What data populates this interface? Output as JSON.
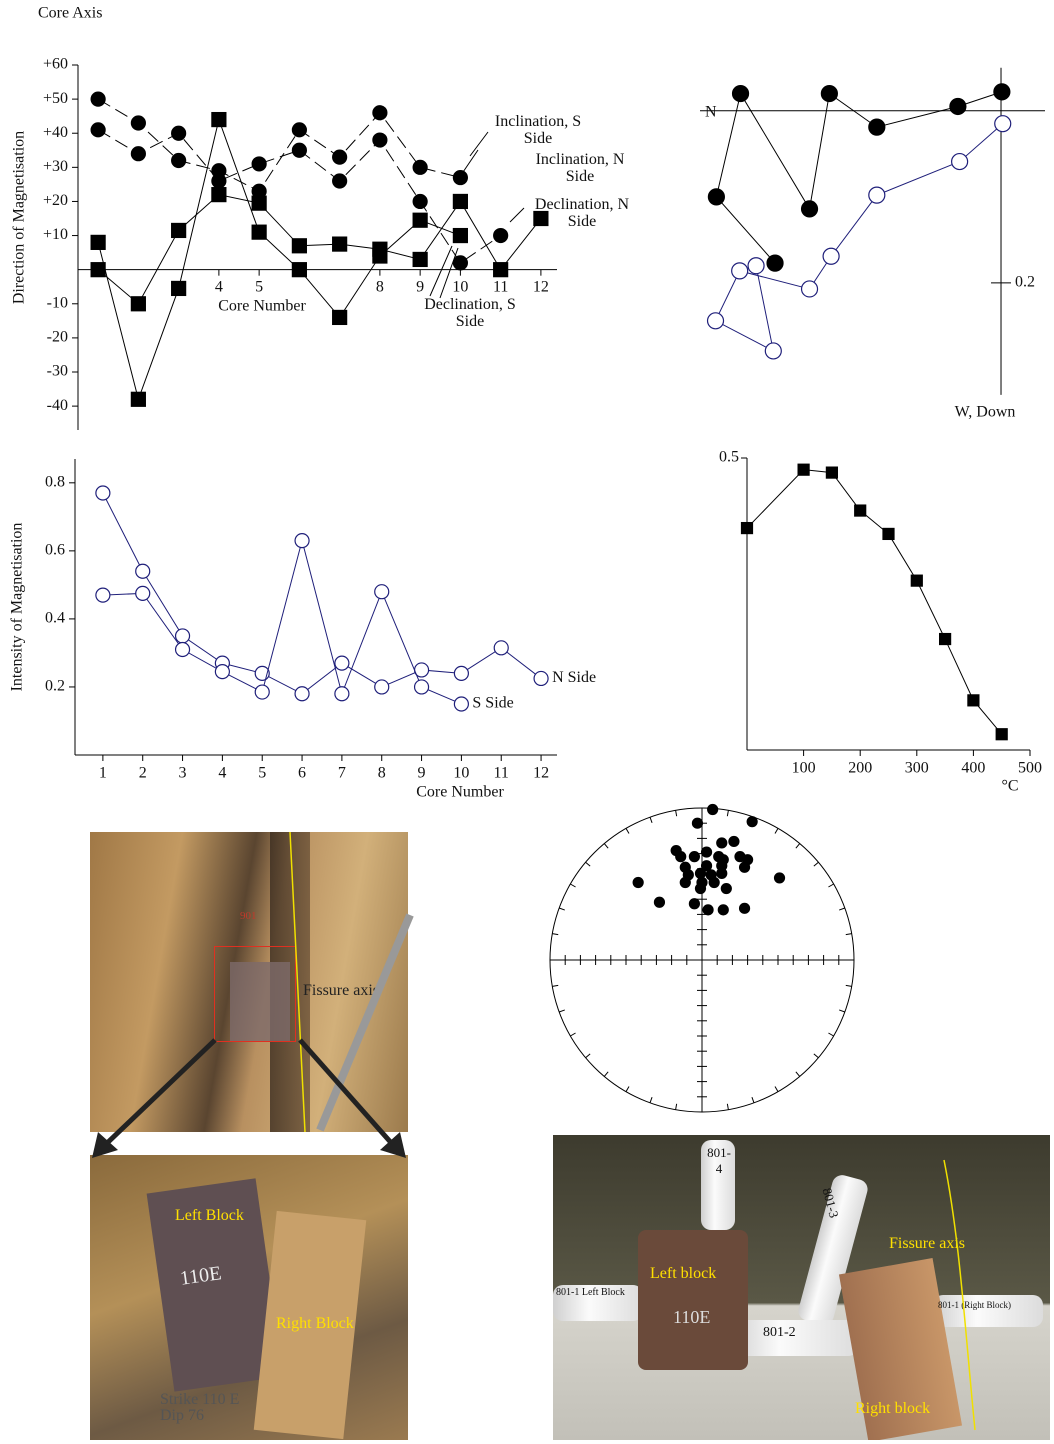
{
  "chart_data": [
    {
      "type": "line",
      "y_axis_title": "Core Axis",
      "ylabel": "Direction of Magnetisation",
      "xlabel": "Core Number",
      "x": [
        1,
        2,
        3,
        4,
        5,
        6,
        7,
        8,
        9,
        10,
        11,
        12
      ],
      "xlim": [
        0.5,
        12.4
      ],
      "xticks": [
        4,
        5,
        8,
        9,
        10,
        11,
        12
      ],
      "ylim": [
        -47,
        60
      ],
      "yticks": [
        {
          "value": 60,
          "label": "+60"
        },
        {
          "value": 50,
          "label": "+50"
        },
        {
          "value": 40,
          "label": "+40"
        },
        {
          "value": 30,
          "label": "+30"
        },
        {
          "value": 20,
          "label": "+20"
        },
        {
          "value": 10,
          "label": "+10"
        },
        -10,
        -20,
        -30,
        -40
      ],
      "series": [
        {
          "name": "Inclination, S Side",
          "color": "#000000",
          "marker": "circle",
          "filled": true,
          "line_style": "dashed",
          "values": [
            50,
            43,
            32,
            29,
            23,
            41,
            33,
            46,
            30,
            27,
            null,
            null
          ]
        },
        {
          "name": "Inclination, N Side",
          "color": "#000000",
          "marker": "circle",
          "filled": true,
          "line_style": "dashed",
          "values": [
            41,
            34,
            40,
            26,
            31,
            35,
            26,
            38,
            20,
            2,
            10,
            null
          ]
        },
        {
          "name": "Declination, S Side",
          "color": "#000000",
          "marker": "square",
          "filled": true,
          "line_style": "solid",
          "values": [
            8,
            -38,
            -5.5,
            44,
            11,
            0,
            -14,
            4,
            14.5,
            10,
            null,
            null
          ]
        },
        {
          "name": "Declination, N Side",
          "color": "#000000",
          "marker": "square",
          "filled": true,
          "line_style": "solid",
          "values": [
            0,
            -10,
            11.5,
            22,
            19.5,
            7,
            7.5,
            6,
            3,
            20,
            0,
            15
          ]
        }
      ]
    },
    {
      "type": "line",
      "axis_label_x": "N",
      "axis_label_y": "W, Down",
      "xlim": [
        -0.349,
        0.051
      ],
      "ylim": [
        -0.336,
        0.059
      ],
      "yticks": [
        {
          "value": -0.2,
          "label": "0.2"
        }
      ],
      "series": [
        {
          "color": "#000000",
          "marker": "circle",
          "filled": true,
          "line_style": "solid",
          "x": [
            0.001,
            -0.05,
            -0.144,
            -0.199,
            -0.222,
            -0.302,
            -0.33,
            -0.262
          ],
          "values": [
            0.022,
            0.005,
            -0.019,
            0.02,
            -0.114,
            0.02,
            -0.1,
            -0.177
          ]
        },
        {
          "color": "#1f1f7a",
          "marker": "circle",
          "filled": false,
          "line_style": "solid",
          "x": [
            0.002,
            -0.048,
            -0.144,
            -0.197,
            -0.222,
            -0.303,
            -0.331,
            -0.264,
            -0.284
          ],
          "values": [
            -0.015,
            -0.059,
            -0.098,
            -0.169,
            -0.207,
            -0.186,
            -0.244,
            -0.279,
            -0.18
          ]
        }
      ]
    },
    {
      "type": "line",
      "ylabel": "Intensity of Magnetisation",
      "xlabel": "Core Number",
      "x": [
        1,
        2,
        3,
        4,
        5,
        6,
        7,
        8,
        9,
        10,
        11,
        12
      ],
      "xlim": [
        0.3,
        12.4
      ],
      "xticks": [
        1,
        2,
        3,
        4,
        5,
        6,
        7,
        8,
        9,
        10,
        11,
        12
      ],
      "ylim": [
        0,
        0.87
      ],
      "yticks": [
        0.2,
        0.4,
        0.6,
        0.8
      ],
      "series": [
        {
          "name": "N Side",
          "color": "#1f1f7a",
          "marker": "circle",
          "filled": false,
          "line_style": "solid",
          "values": [
            0.77,
            0.54,
            0.35,
            0.27,
            0.24,
            0.18,
            0.27,
            0.2,
            0.25,
            0.24,
            0.315,
            0.225
          ]
        },
        {
          "name": "S Side",
          "color": "#1f1f7a",
          "marker": "circle",
          "filled": false,
          "line_style": "solid",
          "values": [
            0.47,
            0.475,
            0.31,
            0.245,
            0.185,
            0.63,
            0.18,
            0.48,
            0.2,
            0.15,
            null,
            null
          ]
        }
      ]
    },
    {
      "type": "line",
      "xlabel": "°C",
      "x": [
        0,
        100,
        150,
        200,
        250,
        300,
        350,
        400,
        450
      ],
      "xlim": [
        0,
        500
      ],
      "xticks": [
        100,
        200,
        300,
        400,
        500
      ],
      "ylim": [
        0,
        0.5
      ],
      "yticks": [
        0.5
      ],
      "series": [
        {
          "color": "#000000",
          "marker": "square",
          "filled": true,
          "line_style": "solid",
          "values": [
            0.38,
            0.48,
            0.475,
            0.41,
            0.37,
            0.29,
            0.19,
            0.085,
            0.027
          ]
        }
      ]
    },
    {
      "type": "scatter",
      "xlim": [
        -1,
        1
      ],
      "ylim": [
        -1,
        1
      ],
      "series": [
        {
          "color": "#000000",
          "marker": "circle",
          "filled": true,
          "x": [
            0.07,
            -0.03,
            0.33,
            0.13,
            0.21,
            -0.17,
            -0.14,
            0.03,
            -0.05,
            0.11,
            0.25,
            0.3,
            0.14,
            0.03,
            -0.11,
            0.13,
            0.28,
            -0.01,
            -0.09,
            0.06,
            0.13,
            -0.11,
            0.0,
            0.08,
            -0.42,
            0.51,
            0.16,
            -0.01,
            -0.28,
            -0.05,
            0.04,
            0.14,
            0.28
          ],
          "values": [
            0.99,
            0.9,
            0.91,
            0.77,
            0.78,
            0.72,
            0.68,
            0.71,
            0.68,
            0.68,
            0.68,
            0.66,
            0.66,
            0.62,
            0.61,
            0.62,
            0.61,
            0.57,
            0.56,
            0.56,
            0.57,
            0.51,
            0.51,
            0.51,
            0.51,
            0.54,
            0.47,
            0.47,
            0.38,
            0.37,
            0.33,
            0.33,
            0.34
          ]
        }
      ]
    }
  ],
  "photos": [
    {
      "labels": [
        "901",
        "Fissure axis"
      ]
    },
    {
      "labels": [
        "110E",
        "Left Block",
        "Right Block",
        "Strike 110 E",
        "Dip 76"
      ]
    },
    {
      "labels": [
        "801-4",
        "801-3",
        "Left block",
        "110E",
        "Fissure axis",
        "801-1 Left Block",
        "801-2",
        "801-1 (Right Block)",
        "Right block"
      ]
    }
  ]
}
